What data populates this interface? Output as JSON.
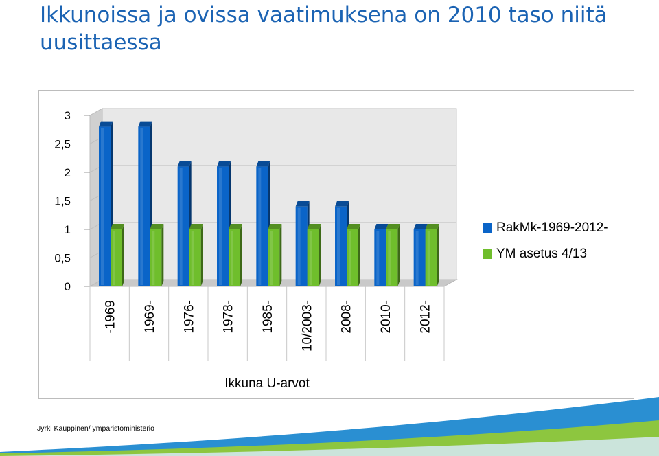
{
  "slide": {
    "title": "Ikkunoissa ja ovissa vaatimuksena on 2010 taso niitä uusittaessa",
    "footer_credit": "Jyrki Kauppinen/ ympäristöministeriö"
  },
  "colors": {
    "title": "#1b63b3",
    "series_blue": "#0a64c8",
    "series_green": "#6fbe2c",
    "wall": "#e8e8e8",
    "footer_wave_blue": "#2a8fd2",
    "footer_wave_green": "#8dc63f"
  },
  "chart_data": {
    "type": "bar",
    "style": "3d-clustered-column",
    "categories": [
      "-1969",
      "1969-",
      "1976-",
      "1978-",
      "1985-",
      "10/2003-",
      "2008-",
      "2010-",
      "2012-"
    ],
    "series": [
      {
        "name": "RakMk-1969-2012-",
        "color": "#0a64c8",
        "values": [
          2.8,
          2.8,
          2.1,
          2.1,
          2.1,
          1.4,
          1.4,
          1.0,
          1.0
        ]
      },
      {
        "name": "YM asetus 4/13",
        "color": "#6fbe2c",
        "values": [
          1.0,
          1.0,
          1.0,
          1.0,
          1.0,
          1.0,
          1.0,
          1.0,
          1.0
        ]
      }
    ],
    "y_ticks": [
      "0",
      "0,5",
      "1",
      "1,5",
      "2",
      "2,5",
      "3"
    ],
    "ylim": [
      0,
      3
    ],
    "xlabel": "Ikkuna U-arvot",
    "ylabel": "",
    "grid": true,
    "legend_position": "right"
  }
}
